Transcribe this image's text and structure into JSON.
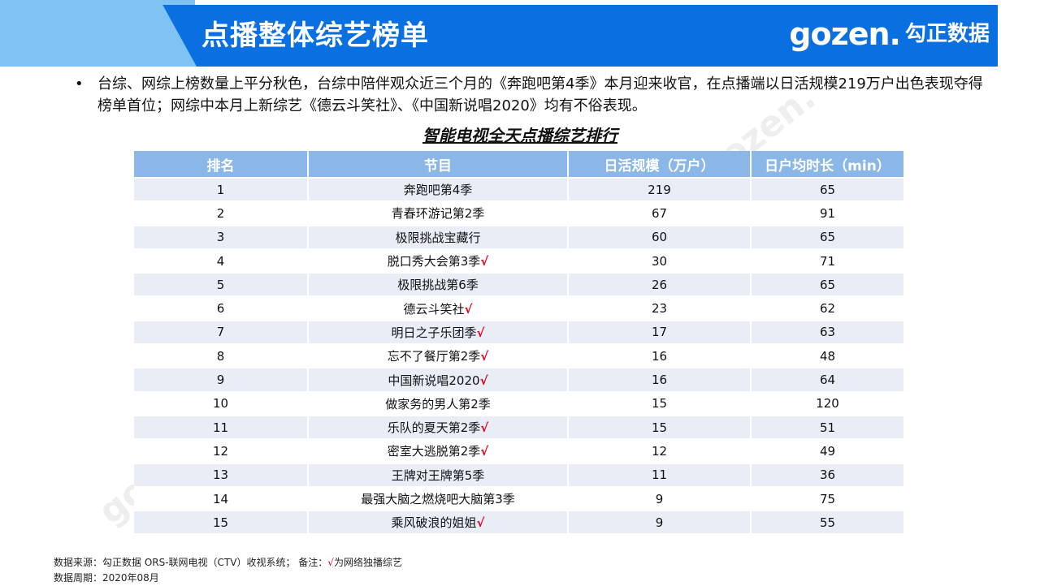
{
  "header": {
    "title": "点播整体综艺榜单",
    "logo_mark": "gozen.",
    "logo_cn": "勾正数据"
  },
  "summary": {
    "bullet": "•",
    "text": "台综、网综上榜数量上平分秋色，台综中陪伴观众近三个月的《奔跑吧第4季》本月迎来收官，在点播端以日活规模219万户出色表现夺得榜单首位；网综中本月上新综艺《德云斗笑社》、《中国新说唱2020》均有不俗表现。"
  },
  "table": {
    "title": "智能电视全天点播综艺排行",
    "headers": [
      "排名",
      "节目",
      "日活规模（万户）",
      "日户均时长（min）"
    ],
    "check_mark": "√",
    "rows": [
      {
        "rank": "1",
        "program": "奔跑吧第4季",
        "network_exclusive": false,
        "dau": "219",
        "duration": "65"
      },
      {
        "rank": "2",
        "program": "青春环游记第2季",
        "network_exclusive": false,
        "dau": "67",
        "duration": "91"
      },
      {
        "rank": "3",
        "program": "极限挑战宝藏行",
        "network_exclusive": false,
        "dau": "60",
        "duration": "65"
      },
      {
        "rank": "4",
        "program": "脱口秀大会第3季",
        "network_exclusive": true,
        "dau": "30",
        "duration": "71"
      },
      {
        "rank": "5",
        "program": "极限挑战第6季",
        "network_exclusive": false,
        "dau": "26",
        "duration": "65"
      },
      {
        "rank": "6",
        "program": "德云斗笑社",
        "network_exclusive": true,
        "dau": "23",
        "duration": "62"
      },
      {
        "rank": "7",
        "program": "明日之子乐团季",
        "network_exclusive": true,
        "dau": "17",
        "duration": "63"
      },
      {
        "rank": "8",
        "program": "忘不了餐厅第2季",
        "network_exclusive": true,
        "dau": "16",
        "duration": "48"
      },
      {
        "rank": "9",
        "program": "中国新说唱2020",
        "network_exclusive": true,
        "dau": "16",
        "duration": "64"
      },
      {
        "rank": "10",
        "program": "做家务的男人第2季",
        "network_exclusive": false,
        "dau": "15",
        "duration": "120"
      },
      {
        "rank": "11",
        "program": "乐队的夏天第2季",
        "network_exclusive": true,
        "dau": "15",
        "duration": "51"
      },
      {
        "rank": "12",
        "program": "密室大逃脱第2季",
        "network_exclusive": true,
        "dau": "12",
        "duration": "49"
      },
      {
        "rank": "13",
        "program": "王牌对王牌第5季",
        "network_exclusive": false,
        "dau": "11",
        "duration": "36"
      },
      {
        "rank": "14",
        "program": "最强大脑之燃烧吧大脑第3季",
        "network_exclusive": false,
        "dau": "9",
        "duration": "75"
      },
      {
        "rank": "15",
        "program": "乘风破浪的姐姐",
        "network_exclusive": true,
        "dau": "9",
        "duration": "55"
      }
    ]
  },
  "footer": {
    "source": "数据来源：勾正数据 ORS-联网电视（CTV）收视系统；   备注：",
    "note_mark": "√",
    "note": "为网络独播综艺",
    "period": "数据周期：2020年08月"
  },
  "colors": {
    "banner_blue": "#0a6fe0",
    "banner_light": "#7ec3f3",
    "table_header": "#8bb6e8",
    "row_stripe": "#e8edf6",
    "check_red": "#e0001b"
  }
}
